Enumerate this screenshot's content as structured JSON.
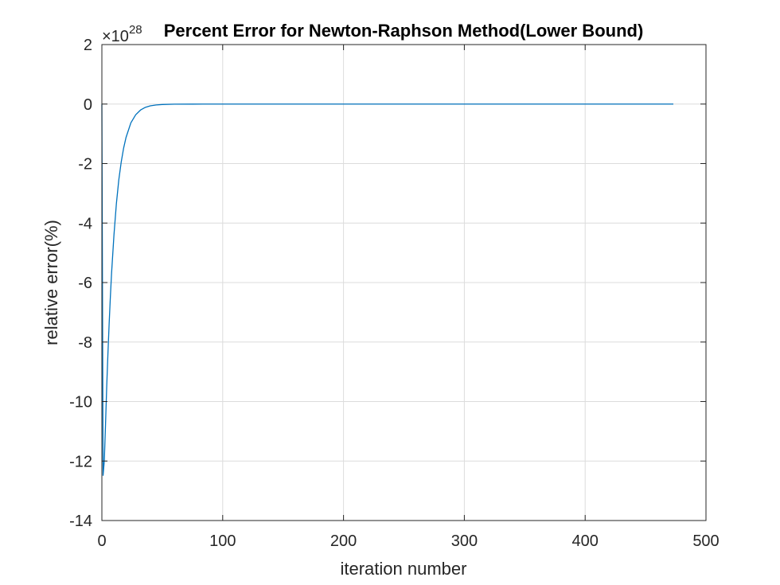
{
  "chart_data": {
    "type": "line",
    "title": "Percent Error for Newton-Raphson Method(Lower Bound)",
    "xlabel": "iteration number",
    "ylabel": "relative error(%)",
    "xlim": [
      0,
      500
    ],
    "ylim": [
      -14,
      2
    ],
    "y_exponent_base": "×10",
    "y_exponent_power": "28",
    "x_ticks": [
      0,
      100,
      200,
      300,
      400,
      500
    ],
    "x_tick_labels": [
      "0",
      "100",
      "200",
      "300",
      "400",
      "500"
    ],
    "y_ticks": [
      2,
      0,
      -2,
      -4,
      -6,
      -8,
      -10,
      -12,
      -14
    ],
    "y_tick_labels": [
      "2",
      "0",
      "-2",
      "-4",
      "-6",
      "-8",
      "-10",
      "-12",
      "-14"
    ],
    "grid": true,
    "series_color": "#0072BD",
    "series": [
      {
        "x": [
          0,
          1,
          2,
          3,
          4,
          5,
          6,
          7,
          8,
          10,
          12,
          14,
          16,
          18,
          20,
          24,
          28,
          32,
          36,
          40,
          45,
          50,
          60,
          75,
          100,
          200,
          300,
          400,
          473
        ],
        "y": [
          0,
          -12.48,
          -12.0,
          -10.8,
          -9.5,
          -8.4,
          -7.4,
          -6.5,
          -5.7,
          -4.4,
          -3.35,
          -2.55,
          -1.95,
          -1.48,
          -1.12,
          -0.63,
          -0.36,
          -0.2,
          -0.11,
          -0.06,
          -0.03,
          -0.015,
          -0.004,
          -0.001,
          0,
          0,
          0,
          0,
          0
        ]
      }
    ]
  }
}
